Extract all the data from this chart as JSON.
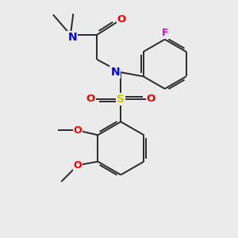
{
  "background_color": "#ebebeb",
  "bond_color": "#2a2a2a",
  "atom_colors": {
    "N": "#0000ee",
    "O": "#ee0000",
    "S": "#cccc00",
    "F": "#dd00dd",
    "C": "#2a2a2a"
  },
  "figsize": [
    3.0,
    3.0
  ],
  "dpi": 100,
  "xlim": [
    20,
    280
  ],
  "ylim": [
    20,
    280
  ]
}
